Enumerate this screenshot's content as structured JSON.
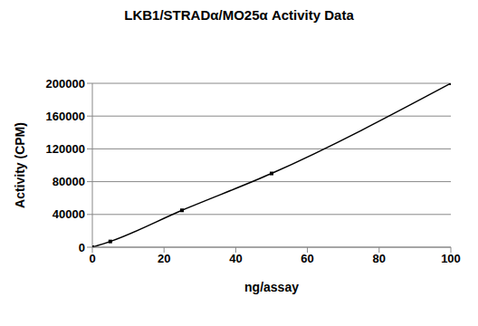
{
  "chart_data": {
    "type": "line",
    "title": "LKB1/STRADα/MO25α Activity Data",
    "x_label": "ng/assay",
    "y_label": "Activity (CPM)",
    "x": [
      0,
      5,
      25,
      50,
      100
    ],
    "series": [
      {
        "name": "Activity",
        "color": "#000000",
        "values": [
          0,
          7000,
          45000,
          90000,
          200000
        ],
        "marker": "square",
        "line_style": "solid"
      }
    ],
    "xlim": [
      0,
      100
    ],
    "xticks": [
      0,
      20,
      40,
      60,
      80,
      100
    ],
    "ylim": [
      0,
      200000
    ],
    "yticks": [
      0,
      40000,
      80000,
      120000,
      160000,
      200000
    ],
    "grid": true
  }
}
